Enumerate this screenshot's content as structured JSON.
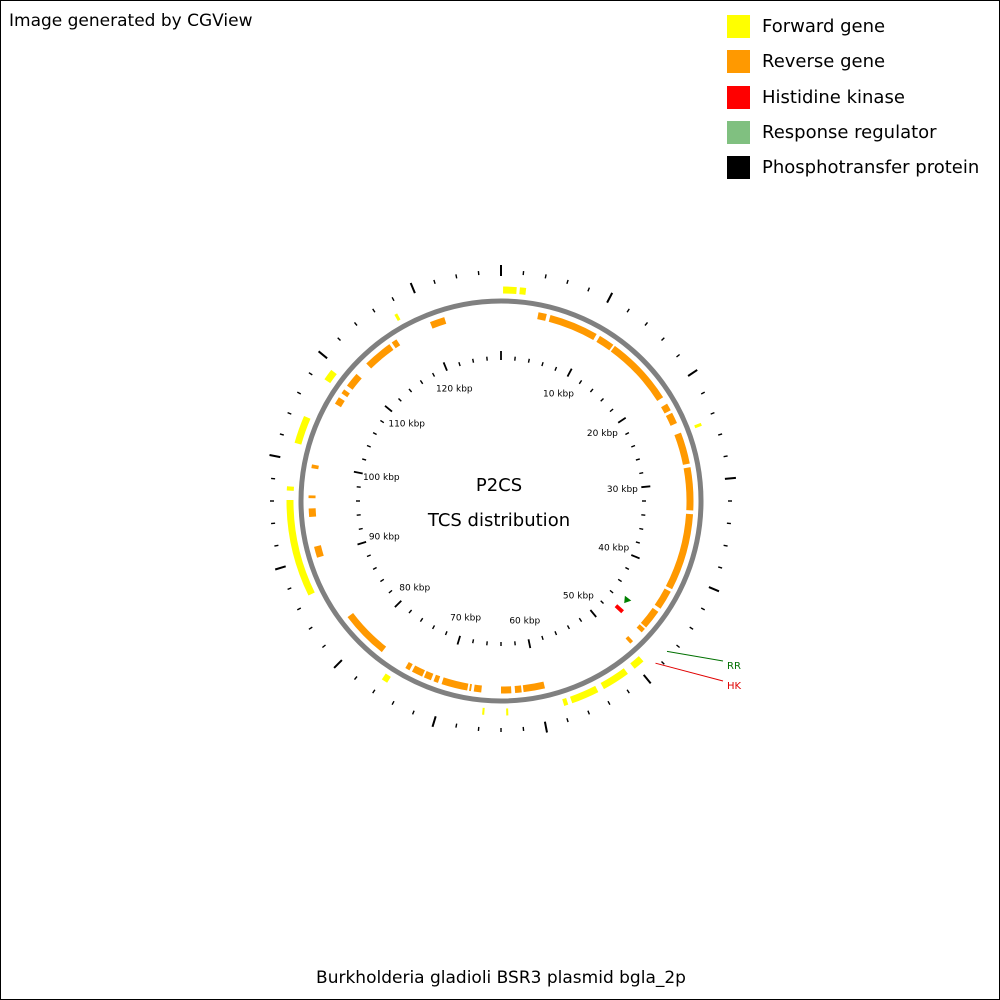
{
  "credit": "Image generated by CGView",
  "legend": [
    {
      "label": "Forward gene",
      "color": "#ffff00"
    },
    {
      "label": "Reverse gene",
      "color": "#ff9900"
    },
    {
      "label": "Histidine kinase",
      "color": "#ff0000"
    },
    {
      "label": "Response regulator",
      "color": "#80c080"
    },
    {
      "label": "Phosphotransfer protein",
      "color": "#000000"
    }
  ],
  "map": {
    "center_line1": "P2CS",
    "center_line2": "TCS distribution",
    "genome_size_kbp": 128,
    "backbone_color": "#808080",
    "ruler_labels": [
      {
        "kbp": 10,
        "text": "10 kbp"
      },
      {
        "kbp": 20,
        "text": "20 kbp"
      },
      {
        "kbp": 30,
        "text": "30 kbp"
      },
      {
        "kbp": 40,
        "text": "40 kbp"
      },
      {
        "kbp": 50,
        "text": "50 kbp"
      },
      {
        "kbp": 60,
        "text": "60 kbp"
      },
      {
        "kbp": 70,
        "text": "70 kbp"
      },
      {
        "kbp": 80,
        "text": "80 kbp"
      },
      {
        "kbp": 90,
        "text": "90 kbp"
      },
      {
        "kbp": 100,
        "text": "100 kbp"
      },
      {
        "kbp": 110,
        "text": "110 kbp"
      },
      {
        "kbp": 120,
        "text": "120 kbp"
      }
    ],
    "forward_genes_kbp": [
      [
        0.2,
        1.5
      ],
      [
        1.8,
        2.4
      ],
      [
        24.4,
        24.7
      ],
      [
        49.2,
        50.3
      ],
      [
        51.1,
        53.8
      ],
      [
        54.4,
        57.1
      ],
      [
        57.5,
        57.9
      ],
      [
        63.3,
        63.5
      ],
      [
        65.6,
        65.8
      ],
      [
        75.4,
        76.0
      ],
      [
        86.7,
        96.1
      ],
      [
        97.0,
        97.4
      ],
      [
        101.6,
        104.3
      ],
      [
        108.3,
        109.4
      ],
      [
        117.4,
        117.7
      ]
    ],
    "reverse_genes_kbp": [
      [
        4.0,
        4.9
      ],
      [
        5.3,
        10.6
      ],
      [
        11.0,
        12.7
      ],
      [
        12.9,
        20.4
      ],
      [
        21.2,
        22.0
      ],
      [
        22.3,
        23.5
      ],
      [
        24.6,
        28.0
      ],
      [
        28.4,
        33.0
      ],
      [
        33.4,
        41.7
      ],
      [
        42.0,
        44.1
      ],
      [
        44.5,
        46.6
      ],
      [
        46.8,
        47.3
      ],
      [
        48.6,
        49.0
      ],
      [
        59.3,
        61.6
      ],
      [
        61.8,
        62.5
      ],
      [
        62.9,
        64.0
      ],
      [
        66.1,
        66.9
      ],
      [
        67.2,
        67.4
      ],
      [
        67.6,
        70.4
      ],
      [
        70.8,
        71.3
      ],
      [
        71.6,
        72.4
      ],
      [
        72.6,
        73.8
      ],
      [
        74.1,
        74.6
      ],
      [
        77.6,
        82.8
      ],
      [
        89.9,
        91.1
      ],
      [
        94.3,
        95.2
      ],
      [
        96.3,
        96.6
      ],
      [
        99.5,
        99.9
      ],
      [
        106.8,
        107.6
      ],
      [
        108.1,
        108.6
      ],
      [
        109.1,
        110.7
      ],
      [
        112.2,
        115.4
      ],
      [
        115.7,
        116.3
      ],
      [
        120.3,
        121.9
      ]
    ],
    "histidine_kinase_kbp": [
      46.8,
      47.3
    ],
    "response_regulator_kbp": [
      45.3,
      45.5
    ],
    "feature_labels": [
      {
        "text": "RR",
        "color": "#007000",
        "kbp": 47.0
      },
      {
        "text": "HK",
        "color": "#e00000",
        "kbp": 48.5
      }
    ]
  },
  "title": "Burkholderia gladioli BSR3 plasmid bgla_2p"
}
